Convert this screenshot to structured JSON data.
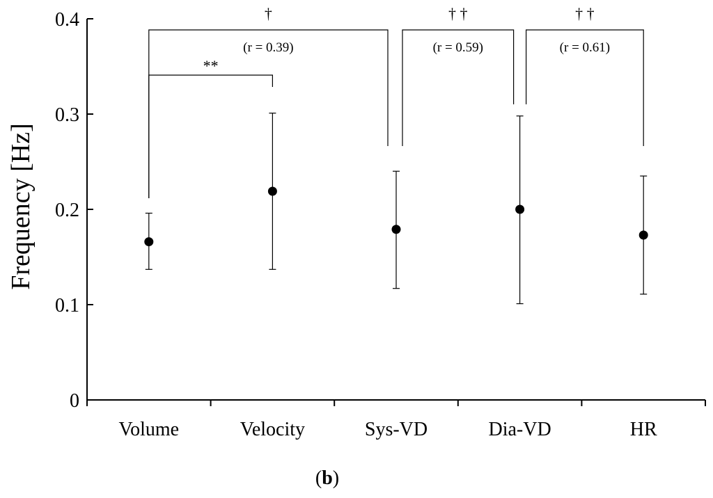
{
  "chart_data": {
    "type": "scatter",
    "ylabel": "Frequency [Hz]",
    "ylim": [
      0,
      0.4
    ],
    "yticks": [
      "0",
      "0.1",
      "0.2",
      "0.3",
      "0.4"
    ],
    "categories": [
      "Volume",
      "Velocity",
      "Sys-VD",
      "Dia-VD",
      "HR"
    ],
    "series": [
      {
        "values": [
          0.166,
          0.219,
          0.179,
          0.2,
          0.173
        ],
        "error_low": [
          0.137,
          0.137,
          0.117,
          0.101,
          0.111
        ],
        "error_high": [
          0.196,
          0.301,
          0.24,
          0.298,
          0.235
        ]
      }
    ],
    "annotations": [
      {
        "from": "Volume",
        "to": "Velocity",
        "mark": "**",
        "r": ""
      },
      {
        "from": "Volume",
        "to": "Sys-VD",
        "mark": "†",
        "r": "(r = 0.39)"
      },
      {
        "from": "Sys-VD",
        "to": "Dia-VD",
        "mark": "† †",
        "r": "(r = 0.59)"
      },
      {
        "from": "Dia-VD",
        "to": "HR",
        "mark": "† †",
        "r": "(r = 0.61)"
      }
    ],
    "grid": false,
    "legend": "none"
  },
  "panel_label": {
    "open": "(",
    "letter": "b",
    "close": ")"
  }
}
